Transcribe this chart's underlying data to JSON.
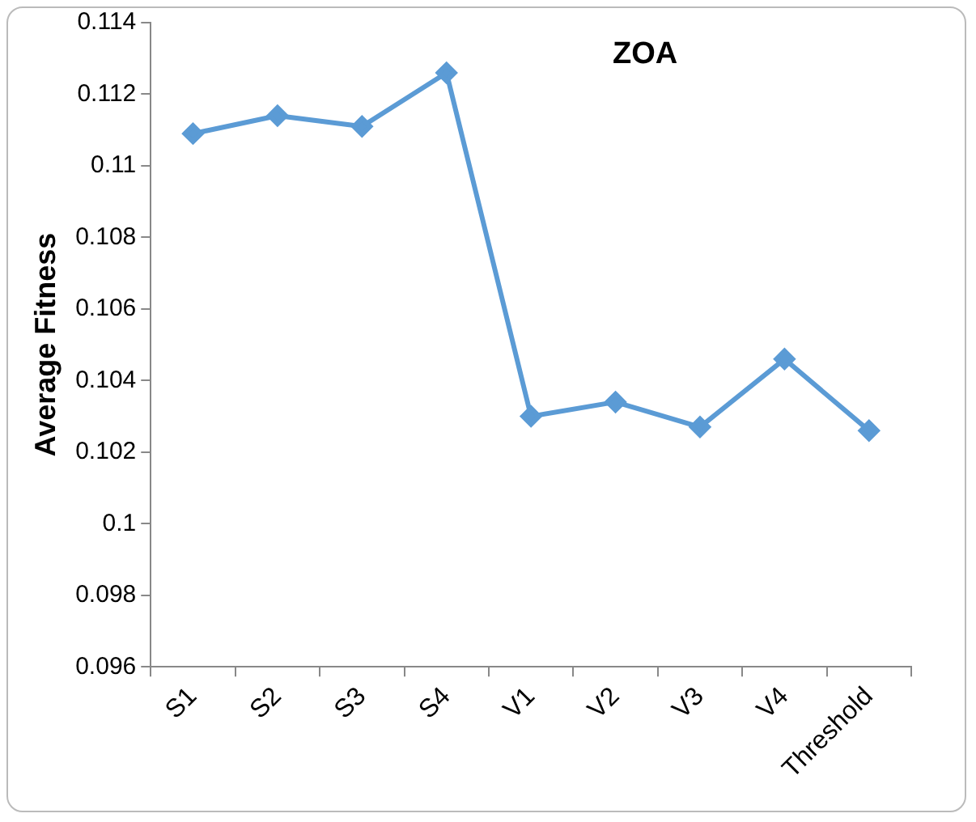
{
  "chart_data": {
    "type": "line",
    "title": "ZOA",
    "ylabel": "Average Fitness",
    "categories": [
      "S1",
      "S2",
      "S3",
      "S4",
      "V1",
      "V2",
      "V3",
      "V4",
      "Threshold"
    ],
    "series": [
      {
        "color": "#5b9bd5",
        "values": [
          0.1109,
          0.1114,
          0.1111,
          0.1126,
          0.103,
          0.1034,
          0.1027,
          0.1046,
          0.1026
        ]
      }
    ],
    "ylim": [
      0.096,
      0.114
    ],
    "yticks": [
      0.096,
      0.098,
      0.1,
      0.102,
      0.104,
      0.106,
      0.108,
      0.11,
      0.112,
      0.114
    ],
    "grid": false,
    "legend": false,
    "marker": "diamond",
    "line_style": "solid"
  }
}
